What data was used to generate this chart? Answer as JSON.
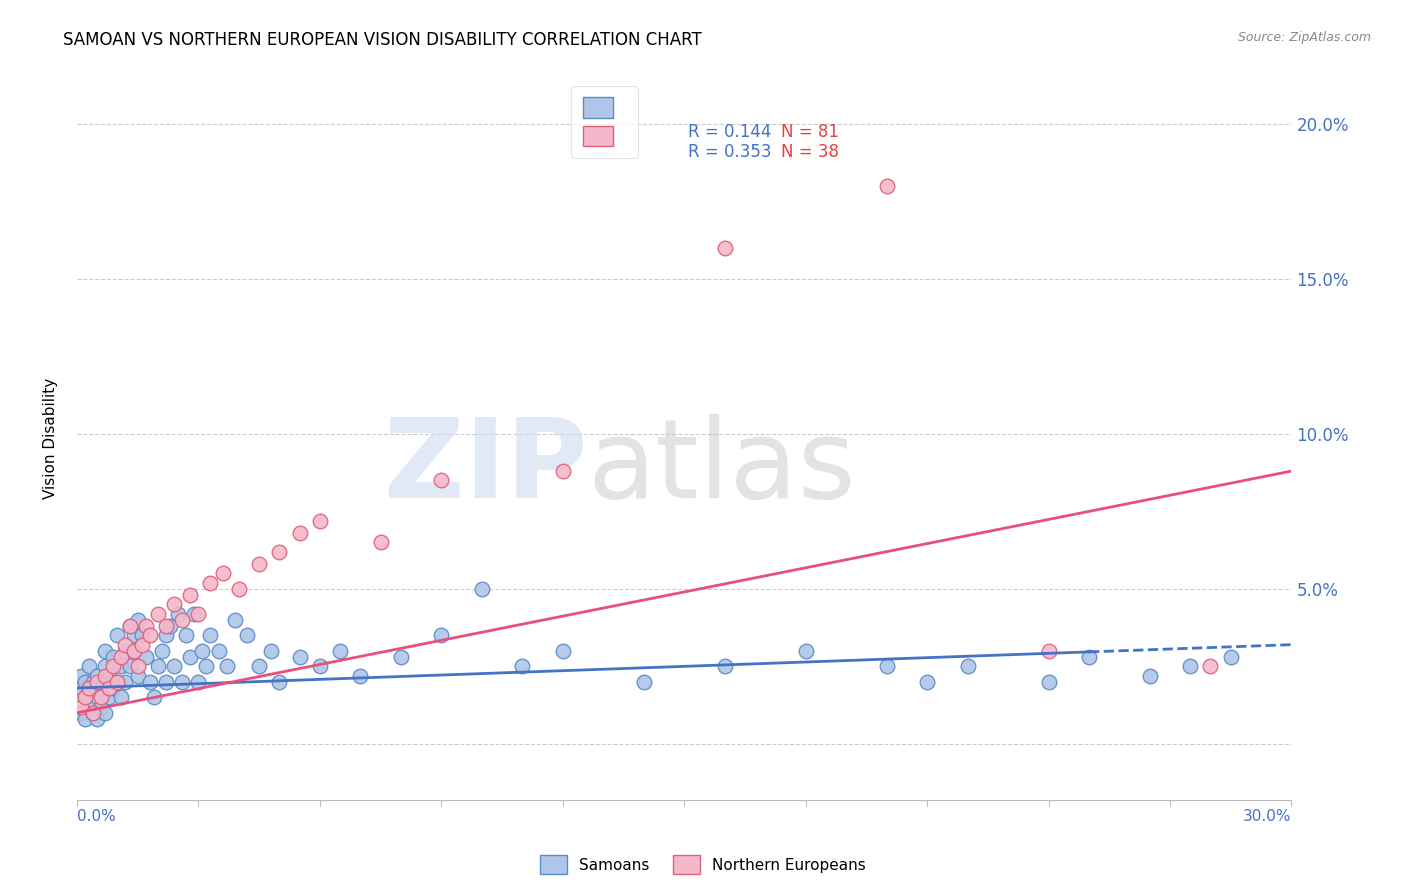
{
  "title": "SAMOAN VS NORTHERN EUROPEAN VISION DISABILITY CORRELATION CHART",
  "source": "Source: ZipAtlas.com",
  "ylabel": "Vision Disability",
  "y_tick_labels": [
    "",
    "5.0%",
    "10.0%",
    "15.0%",
    "20.0%"
  ],
  "y_tick_values": [
    0.0,
    0.05,
    0.1,
    0.15,
    0.2
  ],
  "xmin": 0.0,
  "xmax": 0.3,
  "ymin": -0.018,
  "ymax": 0.215,
  "samoans_color": "#aec6e8",
  "samoans_edge_color": "#5b8cc8",
  "northern_europeans_color": "#f5b8cb",
  "northern_europeans_edge_color": "#e0607a",
  "trend_samoans_color": "#4472C4",
  "trend_northern_europeans_color": "#E8507A",
  "legend_R_color": "#4472C4",
  "legend_N_color": "#E8507A",
  "legend_text_color": "#333333",
  "legend_R_samoans": "R = 0.144",
  "legend_N_samoans": "N = 81",
  "legend_R_northern": "R = 0.353",
  "legend_N_northern": "N = 38",
  "samoans_trend_start_y": 0.018,
  "samoans_trend_end_y": 0.032,
  "northern_trend_start_y": 0.01,
  "northern_trend_end_y": 0.088,
  "samoans_x": [
    0.001,
    0.001,
    0.001,
    0.002,
    0.002,
    0.002,
    0.003,
    0.003,
    0.003,
    0.004,
    0.004,
    0.005,
    0.005,
    0.005,
    0.006,
    0.006,
    0.007,
    0.007,
    0.007,
    0.008,
    0.008,
    0.009,
    0.009,
    0.01,
    0.01,
    0.011,
    0.011,
    0.012,
    0.012,
    0.013,
    0.013,
    0.014,
    0.014,
    0.015,
    0.015,
    0.016,
    0.017,
    0.018,
    0.019,
    0.02,
    0.021,
    0.022,
    0.022,
    0.023,
    0.024,
    0.025,
    0.026,
    0.027,
    0.028,
    0.029,
    0.03,
    0.031,
    0.032,
    0.033,
    0.035,
    0.037,
    0.039,
    0.042,
    0.045,
    0.048,
    0.05,
    0.055,
    0.06,
    0.065,
    0.07,
    0.08,
    0.09,
    0.1,
    0.11,
    0.12,
    0.14,
    0.16,
    0.18,
    0.2,
    0.21,
    0.22,
    0.24,
    0.25,
    0.265,
    0.275,
    0.285
  ],
  "samoans_y": [
    0.018,
    0.022,
    0.01,
    0.015,
    0.02,
    0.008,
    0.025,
    0.012,
    0.018,
    0.01,
    0.02,
    0.015,
    0.008,
    0.022,
    0.012,
    0.018,
    0.025,
    0.01,
    0.03,
    0.015,
    0.022,
    0.018,
    0.028,
    0.02,
    0.035,
    0.015,
    0.025,
    0.03,
    0.02,
    0.038,
    0.025,
    0.03,
    0.035,
    0.04,
    0.022,
    0.035,
    0.028,
    0.02,
    0.015,
    0.025,
    0.03,
    0.035,
    0.02,
    0.038,
    0.025,
    0.042,
    0.02,
    0.035,
    0.028,
    0.042,
    0.02,
    0.03,
    0.025,
    0.035,
    0.03,
    0.025,
    0.04,
    0.035,
    0.025,
    0.03,
    0.02,
    0.028,
    0.025,
    0.03,
    0.022,
    0.028,
    0.035,
    0.05,
    0.025,
    0.03,
    0.02,
    0.025,
    0.03,
    0.025,
    0.02,
    0.025,
    0.02,
    0.028,
    0.022,
    0.025,
    0.028
  ],
  "northern_x": [
    0.001,
    0.002,
    0.003,
    0.004,
    0.005,
    0.006,
    0.007,
    0.008,
    0.009,
    0.01,
    0.011,
    0.012,
    0.013,
    0.014,
    0.015,
    0.016,
    0.017,
    0.018,
    0.02,
    0.022,
    0.024,
    0.026,
    0.028,
    0.03,
    0.033,
    0.036,
    0.04,
    0.045,
    0.05,
    0.055,
    0.06,
    0.075,
    0.09,
    0.12,
    0.16,
    0.2,
    0.24,
    0.28
  ],
  "northern_y": [
    0.012,
    0.015,
    0.018,
    0.01,
    0.02,
    0.015,
    0.022,
    0.018,
    0.025,
    0.02,
    0.028,
    0.032,
    0.038,
    0.03,
    0.025,
    0.032,
    0.038,
    0.035,
    0.042,
    0.038,
    0.045,
    0.04,
    0.048,
    0.042,
    0.052,
    0.055,
    0.05,
    0.058,
    0.062,
    0.068,
    0.072,
    0.065,
    0.085,
    0.088,
    0.16,
    0.18,
    0.03,
    0.025
  ]
}
